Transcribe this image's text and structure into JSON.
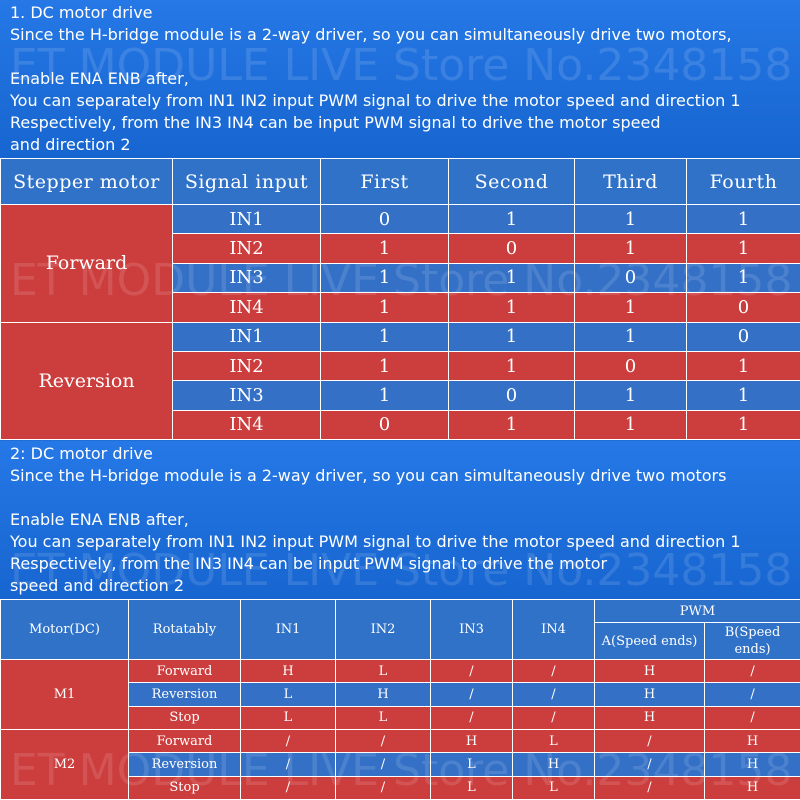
{
  "section1": {
    "lines": [
      "1. DC motor drive",
      "Since the H-bridge module is a 2-way driver, so you can simultaneously drive two motors,",
      "",
      "Enable ENA ENB after,",
      "You can separately from IN1 IN2 input PWM signal to drive the motor speed and direction 1",
      "Respectively, from the IN3 IN4 can be input PWM signal to drive the motor speed",
      " and direction 2"
    ]
  },
  "stepper_table": {
    "headers": [
      "Stepper motor",
      "Signal input",
      "First",
      "Second",
      "Third",
      "Fourth"
    ],
    "groups": [
      {
        "label": "Forward",
        "rows": [
          {
            "signal": "IN1",
            "values": [
              "0",
              "1",
              "1",
              "1"
            ]
          },
          {
            "signal": "IN2",
            "values": [
              "1",
              "0",
              "1",
              "1"
            ]
          },
          {
            "signal": "IN3",
            "values": [
              "1",
              "1",
              "0",
              "1"
            ]
          },
          {
            "signal": "IN4",
            "values": [
              "1",
              "1",
              "1",
              "0"
            ]
          }
        ]
      },
      {
        "label": "Reversion",
        "rows": [
          {
            "signal": "IN1",
            "values": [
              "1",
              "1",
              "1",
              "0"
            ]
          },
          {
            "signal": "IN2",
            "values": [
              "1",
              "1",
              "0",
              "1"
            ]
          },
          {
            "signal": "IN3",
            "values": [
              "1",
              "0",
              "1",
              "1"
            ]
          },
          {
            "signal": "IN4",
            "values": [
              "0",
              "1",
              "1",
              "1"
            ]
          }
        ]
      }
    ]
  },
  "section2": {
    "lines": [
      "2: DC motor drive",
      "Since the H-bridge module is a 2-way driver, so you can simultaneously drive two motors",
      "",
      "Enable ENA ENB after,",
      "You can separately from IN1 IN2 input PWM signal to drive the motor speed and direction 1",
      "Respectively, from the IN3 IN4 can be input PWM signal to drive the motor",
      "speed and direction 2"
    ]
  },
  "dc_table": {
    "headers": {
      "motor": "Motor(DC)",
      "rotatably": "Rotatably",
      "in1": "IN1",
      "in2": "IN2",
      "in3": "IN3",
      "in4": "IN4",
      "pwm": "PWM",
      "pwm_a": "A(Speed ends)",
      "pwm_b": "B(Speed ends)"
    },
    "groups": [
      {
        "label": "M1",
        "rows": [
          {
            "rot": "Forward",
            "values": [
              "H",
              "L",
              "/",
              "/",
              "H",
              "/"
            ]
          },
          {
            "rot": "Reversion",
            "values": [
              "L",
              "H",
              "/",
              "/",
              "H",
              "/"
            ]
          },
          {
            "rot": "Stop",
            "values": [
              "L",
              "L",
              "/",
              "/",
              "H",
              "/"
            ]
          }
        ]
      },
      {
        "label": "M2",
        "rows": [
          {
            "rot": "Forward",
            "values": [
              "/",
              "/",
              "H",
              "L",
              "/",
              "H"
            ]
          },
          {
            "rot": "Reversion",
            "values": [
              "/",
              "/",
              "L",
              "H",
              "/",
              "H"
            ]
          },
          {
            "rot": "Stop",
            "values": [
              "/",
              "/",
              "L",
              "L",
              "/",
              "H"
            ]
          }
        ]
      }
    ]
  },
  "watermark": "ET MODULE LIVE  Store No.2348158",
  "colors": {
    "blue_row": "#3470c6",
    "red_row": "#cc3d3d",
    "text_background": "#1f6fd6",
    "text": "#ffffff"
  }
}
